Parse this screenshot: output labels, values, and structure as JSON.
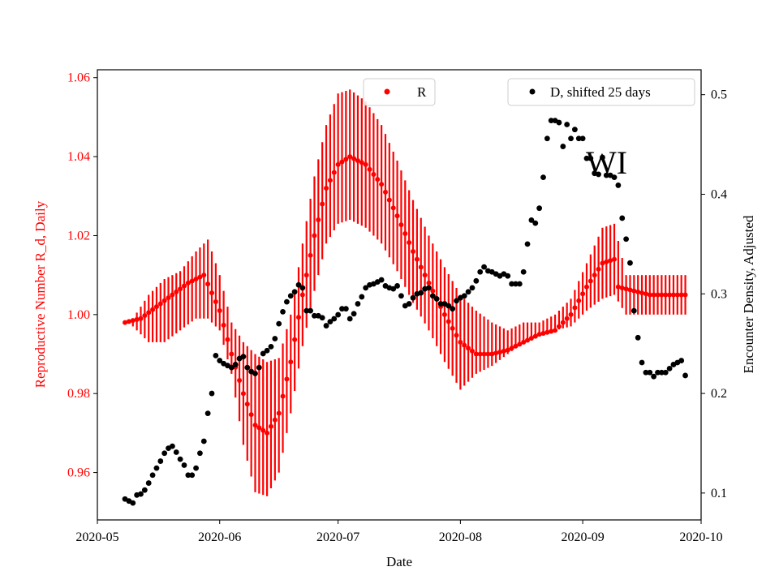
{
  "chart_data": {
    "type": "scatter",
    "annotation": "WI",
    "xlabel": "Date",
    "ylabel_left": "Reproductive Number R_d, Daily",
    "ylabel_right": "Encounter Density, Adjusted",
    "x_range": [
      "2020-05-01",
      "2020-10-01"
    ],
    "ylim_left": [
      0.948,
      1.062
    ],
    "ylim_right": [
      0.073,
      0.525
    ],
    "x_ticks": [
      "2020-05",
      "2020-06",
      "2020-07",
      "2020-08",
      "2020-09",
      "2020-10"
    ],
    "x_tick_dates": [
      "2020-05-01",
      "2020-06-01",
      "2020-07-01",
      "2020-08-01",
      "2020-09-01",
      "2020-10-01"
    ],
    "y_ticks_left": [
      "0.96",
      "0.98",
      "1.00",
      "1.02",
      "1.04",
      "1.06"
    ],
    "y_ticks_right": [
      "0.1",
      "0.2",
      "0.3",
      "0.4",
      "0.5"
    ],
    "colors": {
      "R": "#ff0000",
      "D": "#000000",
      "left_axis": "#ff0000",
      "right_axis": "#000000"
    },
    "legend": [
      {
        "label": "R",
        "color": "#ff0000",
        "placement": "top-center"
      },
      {
        "label": "D, shifted 25 days",
        "color": "#000000",
        "placement": "top-right"
      }
    ],
    "series": [
      {
        "name": "R",
        "axis": "left",
        "start_date": "2020-05-08",
        "end_date": "2020-09-27",
        "points_date_value_err": [
          [
            "2020-05-08",
            0.998,
            0.0
          ],
          [
            "2020-05-12",
            0.999,
            0.005
          ],
          [
            "2020-05-16",
            1.002,
            0.007
          ],
          [
            "2020-05-20",
            1.005,
            0.008
          ],
          [
            "2020-05-24",
            1.008,
            0.009
          ],
          [
            "2020-05-28",
            1.01,
            0.009
          ],
          [
            "2020-06-01",
            1.001,
            0.005
          ],
          [
            "2020-06-04",
            0.99,
            0.008
          ],
          [
            "2020-06-07",
            0.98,
            0.011
          ],
          [
            "2020-06-10",
            0.972,
            0.015
          ],
          [
            "2020-06-13",
            0.97,
            0.015
          ],
          [
            "2020-06-16",
            0.975,
            0.013
          ],
          [
            "2020-06-19",
            0.988,
            0.012
          ],
          [
            "2020-06-22",
            1.005,
            0.013
          ],
          [
            "2020-06-25",
            1.02,
            0.014
          ],
          [
            "2020-06-28",
            1.032,
            0.015
          ],
          [
            "2020-07-01",
            1.038,
            0.016
          ],
          [
            "2020-07-04",
            1.04,
            0.017
          ],
          [
            "2020-07-08",
            1.038,
            0.016
          ],
          [
            "2020-07-12",
            1.033,
            0.015
          ],
          [
            "2020-07-16",
            1.025,
            0.014
          ],
          [
            "2020-07-20",
            1.016,
            0.013
          ],
          [
            "2020-07-24",
            1.008,
            0.012
          ],
          [
            "2020-07-28",
            1.0,
            0.012
          ],
          [
            "2020-08-01",
            0.993,
            0.012
          ],
          [
            "2020-08-05",
            0.99,
            0.011
          ],
          [
            "2020-08-09",
            0.99,
            0.007
          ],
          [
            "2020-08-13",
            0.991,
            0.005
          ],
          [
            "2020-08-17",
            0.993,
            0.003
          ],
          [
            "2020-08-21",
            0.995,
            0.002
          ],
          [
            "2020-08-25",
            0.996,
            0.002
          ],
          [
            "2020-08-29",
            1.0,
            0.004
          ],
          [
            "2020-09-02",
            1.007,
            0.006
          ],
          [
            "2020-09-06",
            1.013,
            0.009
          ],
          [
            "2020-09-09",
            1.014,
            0.01
          ],
          [
            "2020-09-10",
            1.007,
            0.0
          ],
          [
            "2020-09-14",
            1.006,
            0.0
          ],
          [
            "2020-09-18",
            1.005,
            0.0
          ],
          [
            "2020-09-22",
            1.005,
            0.0
          ],
          [
            "2020-09-27",
            1.005,
            0.0
          ]
        ],
        "error_band": [
          [
            "2020-05-10",
            0.997,
            0.999
          ],
          [
            "2020-05-14",
            0.993,
            1.005
          ],
          [
            "2020-05-18",
            0.993,
            1.009
          ],
          [
            "2020-05-22",
            0.996,
            1.011
          ],
          [
            "2020-05-26",
            0.999,
            1.016
          ],
          [
            "2020-05-29",
            0.999,
            1.019
          ],
          [
            "2020-06-01",
            0.996,
            1.01
          ],
          [
            "2020-06-04",
            0.985,
            0.998
          ],
          [
            "2020-06-07",
            0.967,
            0.993
          ],
          [
            "2020-06-10",
            0.955,
            0.99
          ],
          [
            "2020-06-13",
            0.954,
            0.988
          ],
          [
            "2020-06-16",
            0.96,
            0.989
          ],
          [
            "2020-06-19",
            0.975,
            1.0
          ],
          [
            "2020-06-22",
            0.992,
            1.018
          ],
          [
            "2020-06-25",
            1.006,
            1.035
          ],
          [
            "2020-06-28",
            1.018,
            1.048
          ],
          [
            "2020-07-01",
            1.023,
            1.056
          ],
          [
            "2020-07-04",
            1.024,
            1.057
          ],
          [
            "2020-07-08",
            1.022,
            1.054
          ],
          [
            "2020-07-12",
            1.018,
            1.048
          ],
          [
            "2020-07-16",
            1.011,
            1.039
          ],
          [
            "2020-07-20",
            1.003,
            1.029
          ],
          [
            "2020-07-24",
            0.996,
            1.02
          ],
          [
            "2020-07-28",
            0.988,
            1.012
          ],
          [
            "2020-08-01",
            0.981,
            1.005
          ],
          [
            "2020-08-05",
            0.985,
            1.001
          ],
          [
            "2020-08-09",
            0.987,
            0.998
          ],
          [
            "2020-08-13",
            0.99,
            0.996
          ],
          [
            "2020-08-17",
            0.993,
            0.998
          ],
          [
            "2020-08-21",
            0.995,
            0.998
          ],
          [
            "2020-08-25",
            0.996,
            1.0
          ],
          [
            "2020-08-29",
            0.997,
            1.004
          ],
          [
            "2020-09-02",
            1.001,
            1.013
          ],
          [
            "2020-09-06",
            1.004,
            1.022
          ],
          [
            "2020-09-09",
            1.005,
            1.023
          ],
          [
            "2020-09-12",
            1.0,
            1.01
          ],
          [
            "2020-09-17",
            1.0,
            1.01
          ],
          [
            "2020-09-22",
            1.0,
            1.01
          ],
          [
            "2020-09-27",
            1.0,
            1.01
          ]
        ]
      },
      {
        "name": "D, shifted 25 days",
        "axis": "right",
        "points_date_value": [
          [
            "2020-05-08",
            0.094
          ],
          [
            "2020-05-09",
            0.092
          ],
          [
            "2020-05-10",
            0.09
          ],
          [
            "2020-05-11",
            0.098
          ],
          [
            "2020-05-12",
            0.099
          ],
          [
            "2020-05-13",
            0.103
          ],
          [
            "2020-05-14",
            0.11
          ],
          [
            "2020-05-15",
            0.118
          ],
          [
            "2020-05-16",
            0.125
          ],
          [
            "2020-05-17",
            0.132
          ],
          [
            "2020-05-18",
            0.14
          ],
          [
            "2020-05-19",
            0.145
          ],
          [
            "2020-05-20",
            0.147
          ],
          [
            "2020-05-21",
            0.141
          ],
          [
            "2020-05-22",
            0.134
          ],
          [
            "2020-05-23",
            0.128
          ],
          [
            "2020-05-24",
            0.118
          ],
          [
            "2020-05-25",
            0.118
          ],
          [
            "2020-05-26",
            0.125
          ],
          [
            "2020-05-27",
            0.14
          ],
          [
            "2020-05-28",
            0.152
          ],
          [
            "2020-05-29",
            0.18
          ],
          [
            "2020-05-30",
            0.2
          ],
          [
            "2020-05-31",
            0.238
          ],
          [
            "2020-06-01",
            0.233
          ],
          [
            "2020-06-02",
            0.23
          ],
          [
            "2020-06-03",
            0.228
          ],
          [
            "2020-06-04",
            0.226
          ],
          [
            "2020-06-05",
            0.229
          ],
          [
            "2020-06-06",
            0.235
          ],
          [
            "2020-06-07",
            0.237
          ],
          [
            "2020-06-08",
            0.226
          ],
          [
            "2020-06-09",
            0.222
          ],
          [
            "2020-06-10",
            0.22
          ],
          [
            "2020-06-11",
            0.226
          ],
          [
            "2020-06-12",
            0.24
          ],
          [
            "2020-06-13",
            0.243
          ],
          [
            "2020-06-14",
            0.247
          ],
          [
            "2020-06-15",
            0.255
          ],
          [
            "2020-06-16",
            0.27
          ],
          [
            "2020-06-17",
            0.282
          ],
          [
            "2020-06-18",
            0.292
          ],
          [
            "2020-06-19",
            0.298
          ],
          [
            "2020-06-20",
            0.302
          ],
          [
            "2020-06-21",
            0.309
          ],
          [
            "2020-06-22",
            0.306
          ],
          [
            "2020-06-23",
            0.283
          ],
          [
            "2020-06-24",
            0.283
          ],
          [
            "2020-06-25",
            0.278
          ],
          [
            "2020-06-26",
            0.278
          ],
          [
            "2020-06-27",
            0.276
          ],
          [
            "2020-06-28",
            0.268
          ],
          [
            "2020-06-29",
            0.272
          ],
          [
            "2020-06-30",
            0.275
          ],
          [
            "2020-07-01",
            0.279
          ],
          [
            "2020-07-02",
            0.285
          ],
          [
            "2020-07-03",
            0.285
          ],
          [
            "2020-07-04",
            0.275
          ],
          [
            "2020-07-05",
            0.28
          ],
          [
            "2020-07-06",
            0.29
          ],
          [
            "2020-07-07",
            0.297
          ],
          [
            "2020-07-08",
            0.306
          ],
          [
            "2020-07-09",
            0.309
          ],
          [
            "2020-07-10",
            0.31
          ],
          [
            "2020-07-11",
            0.312
          ],
          [
            "2020-07-12",
            0.314
          ],
          [
            "2020-07-13",
            0.308
          ],
          [
            "2020-07-14",
            0.306
          ],
          [
            "2020-07-15",
            0.305
          ],
          [
            "2020-07-16",
            0.308
          ],
          [
            "2020-07-17",
            0.298
          ],
          [
            "2020-07-18",
            0.288
          ],
          [
            "2020-07-19",
            0.29
          ],
          [
            "2020-07-20",
            0.296
          ],
          [
            "2020-07-21",
            0.3
          ],
          [
            "2020-07-22",
            0.301
          ],
          [
            "2020-07-23",
            0.305
          ],
          [
            "2020-07-24",
            0.306
          ],
          [
            "2020-07-25",
            0.298
          ],
          [
            "2020-07-26",
            0.295
          ],
          [
            "2020-07-27",
            0.29
          ],
          [
            "2020-07-28",
            0.29
          ],
          [
            "2020-07-29",
            0.288
          ],
          [
            "2020-07-30",
            0.285
          ],
          [
            "2020-07-31",
            0.293
          ],
          [
            "2020-08-01",
            0.296
          ],
          [
            "2020-08-02",
            0.298
          ],
          [
            "2020-08-03",
            0.302
          ],
          [
            "2020-08-04",
            0.306
          ],
          [
            "2020-08-05",
            0.313
          ],
          [
            "2020-08-06",
            0.322
          ],
          [
            "2020-08-07",
            0.327
          ],
          [
            "2020-08-08",
            0.323
          ],
          [
            "2020-08-09",
            0.322
          ],
          [
            "2020-08-10",
            0.32
          ],
          [
            "2020-08-11",
            0.318
          ],
          [
            "2020-08-12",
            0.32
          ],
          [
            "2020-08-13",
            0.318
          ],
          [
            "2020-08-14",
            0.31
          ],
          [
            "2020-08-15",
            0.31
          ],
          [
            "2020-08-16",
            0.31
          ],
          [
            "2020-08-17",
            0.322
          ],
          [
            "2020-08-18",
            0.35
          ],
          [
            "2020-08-19",
            0.374
          ],
          [
            "2020-08-20",
            0.371
          ],
          [
            "2020-08-21",
            0.386
          ],
          [
            "2020-08-22",
            0.417
          ],
          [
            "2020-08-23",
            0.456
          ],
          [
            "2020-08-24",
            0.474
          ],
          [
            "2020-08-25",
            0.474
          ],
          [
            "2020-08-26",
            0.472
          ],
          [
            "2020-08-27",
            0.448
          ],
          [
            "2020-08-28",
            0.47
          ],
          [
            "2020-08-29",
            0.456
          ],
          [
            "2020-08-30",
            0.465
          ],
          [
            "2020-08-31",
            0.456
          ],
          [
            "2020-09-01",
            0.456
          ],
          [
            "2020-09-02",
            0.436
          ],
          [
            "2020-09-03",
            0.436
          ],
          [
            "2020-09-04",
            0.421
          ],
          [
            "2020-09-05",
            0.42
          ],
          [
            "2020-09-06",
            0.437
          ],
          [
            "2020-09-07",
            0.419
          ],
          [
            "2020-09-08",
            0.419
          ],
          [
            "2020-09-09",
            0.417
          ],
          [
            "2020-09-10",
            0.409
          ],
          [
            "2020-09-11",
            0.376
          ],
          [
            "2020-09-12",
            0.355
          ],
          [
            "2020-09-13",
            0.331
          ],
          [
            "2020-09-14",
            0.283
          ],
          [
            "2020-09-15",
            0.256
          ],
          [
            "2020-09-16",
            0.231
          ],
          [
            "2020-09-17",
            0.221
          ],
          [
            "2020-09-18",
            0.221
          ],
          [
            "2020-09-19",
            0.217
          ],
          [
            "2020-09-20",
            0.221
          ],
          [
            "2020-09-21",
            0.221
          ],
          [
            "2020-09-22",
            0.221
          ],
          [
            "2020-09-23",
            0.225
          ],
          [
            "2020-09-24",
            0.229
          ],
          [
            "2020-09-25",
            0.231
          ],
          [
            "2020-09-26",
            0.233
          ],
          [
            "2020-09-27",
            0.218
          ]
        ]
      }
    ]
  }
}
